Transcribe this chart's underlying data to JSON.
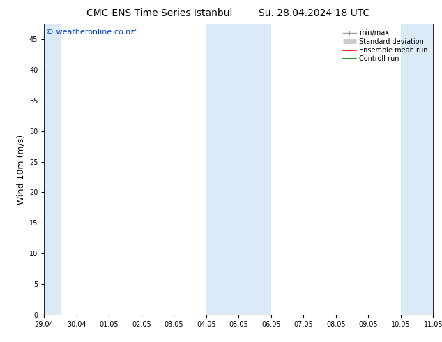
{
  "title_left": "CMC-ENS Time Series Istanbul",
  "title_right": "Su. 28.04.2024 18 UTC",
  "ylabel": "Wind 10m (m/s)",
  "watermark": "© weatheronline.co.nz'",
  "x_tick_labels": [
    "29.04",
    "30.04",
    "01.05",
    "02.05",
    "03.05",
    "04.05",
    "05.05",
    "06.05",
    "07.05",
    "08.05",
    "09.05",
    "10.05",
    "11.05"
  ],
  "x_tick_positions": [
    0,
    1,
    2,
    3,
    4,
    5,
    6,
    7,
    8,
    9,
    10,
    11,
    12
  ],
  "ylim": [
    0,
    47.5
  ],
  "yticks": [
    0,
    5,
    10,
    15,
    20,
    25,
    30,
    35,
    40,
    45
  ],
  "shaded_bands": [
    [
      -0.1,
      0.5
    ],
    [
      5.0,
      6.0
    ],
    [
      6.0,
      7.0
    ],
    [
      11.0,
      12.5
    ]
  ],
  "band_color": "#daeaf7",
  "legend_items": [
    {
      "label": "min/max",
      "color": "#999999",
      "lw": 1.0
    },
    {
      "label": "Standard deviation",
      "color": "#cccccc",
      "lw": 5
    },
    {
      "label": "Ensemble mean run",
      "color": "#ff0000",
      "lw": 1.2
    },
    {
      "label": "Controll run",
      "color": "#008000",
      "lw": 1.2
    }
  ],
  "bg_color": "#ffffff",
  "plot_bg_color": "#ffffff",
  "title_fontsize": 10,
  "tick_fontsize": 7,
  "ylabel_fontsize": 9,
  "watermark_fontsize": 8,
  "watermark_color": "#0044cc"
}
